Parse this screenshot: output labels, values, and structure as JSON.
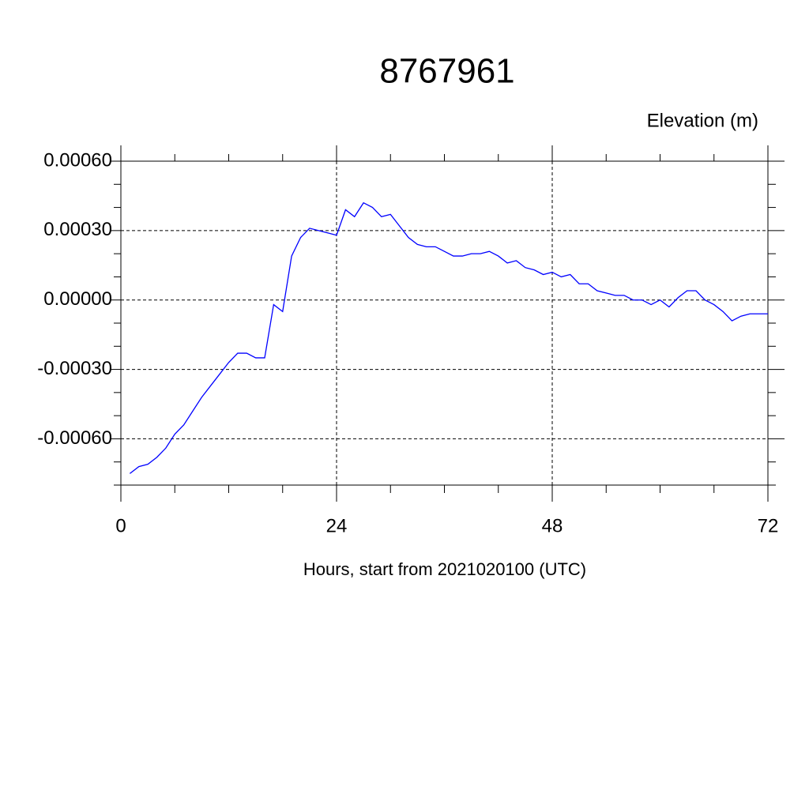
{
  "chart_data": {
    "type": "line",
    "title": "8767961",
    "y_label": "Elevation (m)",
    "x_label": "Hours, start from 2021020100 (UTC)",
    "x": [
      1,
      2,
      3,
      4,
      5,
      6,
      7,
      8,
      9,
      10,
      11,
      12,
      13,
      14,
      15,
      16,
      17,
      18,
      19,
      20,
      21,
      22,
      23,
      24,
      25,
      26,
      27,
      28,
      29,
      30,
      31,
      32,
      33,
      34,
      35,
      36,
      37,
      38,
      39,
      40,
      41,
      42,
      43,
      44,
      45,
      46,
      47,
      48,
      49,
      50,
      51,
      52,
      53,
      54,
      55,
      56,
      57,
      58,
      59,
      60,
      61,
      62,
      63,
      64,
      65,
      66,
      67,
      68,
      69,
      70,
      71,
      72
    ],
    "series": [
      {
        "color": "#0000ff",
        "values": [
          -0.00075,
          -0.00072,
          -0.00071,
          -0.00068,
          -0.00064,
          -0.00058,
          -0.00054,
          -0.00048,
          -0.00042,
          -0.00037,
          -0.00032,
          -0.00027,
          -0.00023,
          -0.00023,
          -0.00025,
          -0.00025,
          -2e-05,
          -5e-05,
          0.00019,
          0.00027,
          0.00031,
          0.0003,
          0.00029,
          0.00028,
          0.00039,
          0.00036,
          0.00042,
          0.0004,
          0.00036,
          0.00037,
          0.00032,
          0.00027,
          0.00024,
          0.00023,
          0.00023,
          0.00021,
          0.00019,
          0.00019,
          0.0002,
          0.0002,
          0.00021,
          0.00019,
          0.00016,
          0.00017,
          0.00014,
          0.00013,
          0.00011,
          0.00012,
          0.0001,
          0.00011,
          7e-05,
          7e-05,
          4e-05,
          3e-05,
          2e-05,
          2e-05,
          0,
          0,
          -2e-05,
          0,
          -3e-05,
          1e-05,
          4e-05,
          4e-05,
          0,
          -2e-05,
          -5e-05,
          -9e-05,
          -7e-05,
          -6e-05,
          -6e-05,
          -6e-05
        ]
      }
    ],
    "xlim": [
      0,
      72
    ],
    "xticks": [
      0,
      24,
      48,
      72
    ],
    "xminorticks": [
      6,
      12,
      18,
      30,
      36,
      42,
      54,
      60,
      66
    ],
    "ylim": [
      -0.0008,
      0.0006
    ],
    "yticks": [
      {
        "value": 0.0006,
        "label": "0.00060"
      },
      {
        "value": 0.0003,
        "label": "0.00030"
      },
      {
        "value": 0,
        "label": "0.00000"
      },
      {
        "value": -0.0003,
        "label": "-0.00030"
      },
      {
        "value": -0.0006,
        "label": "-0.00060"
      }
    ],
    "yminorticks": [
      0.0005,
      0.0004,
      0.0002,
      0.0001,
      -0.0001,
      -0.0002,
      -0.0004,
      -0.0005,
      -0.0007,
      -0.0008
    ],
    "grid": true
  }
}
